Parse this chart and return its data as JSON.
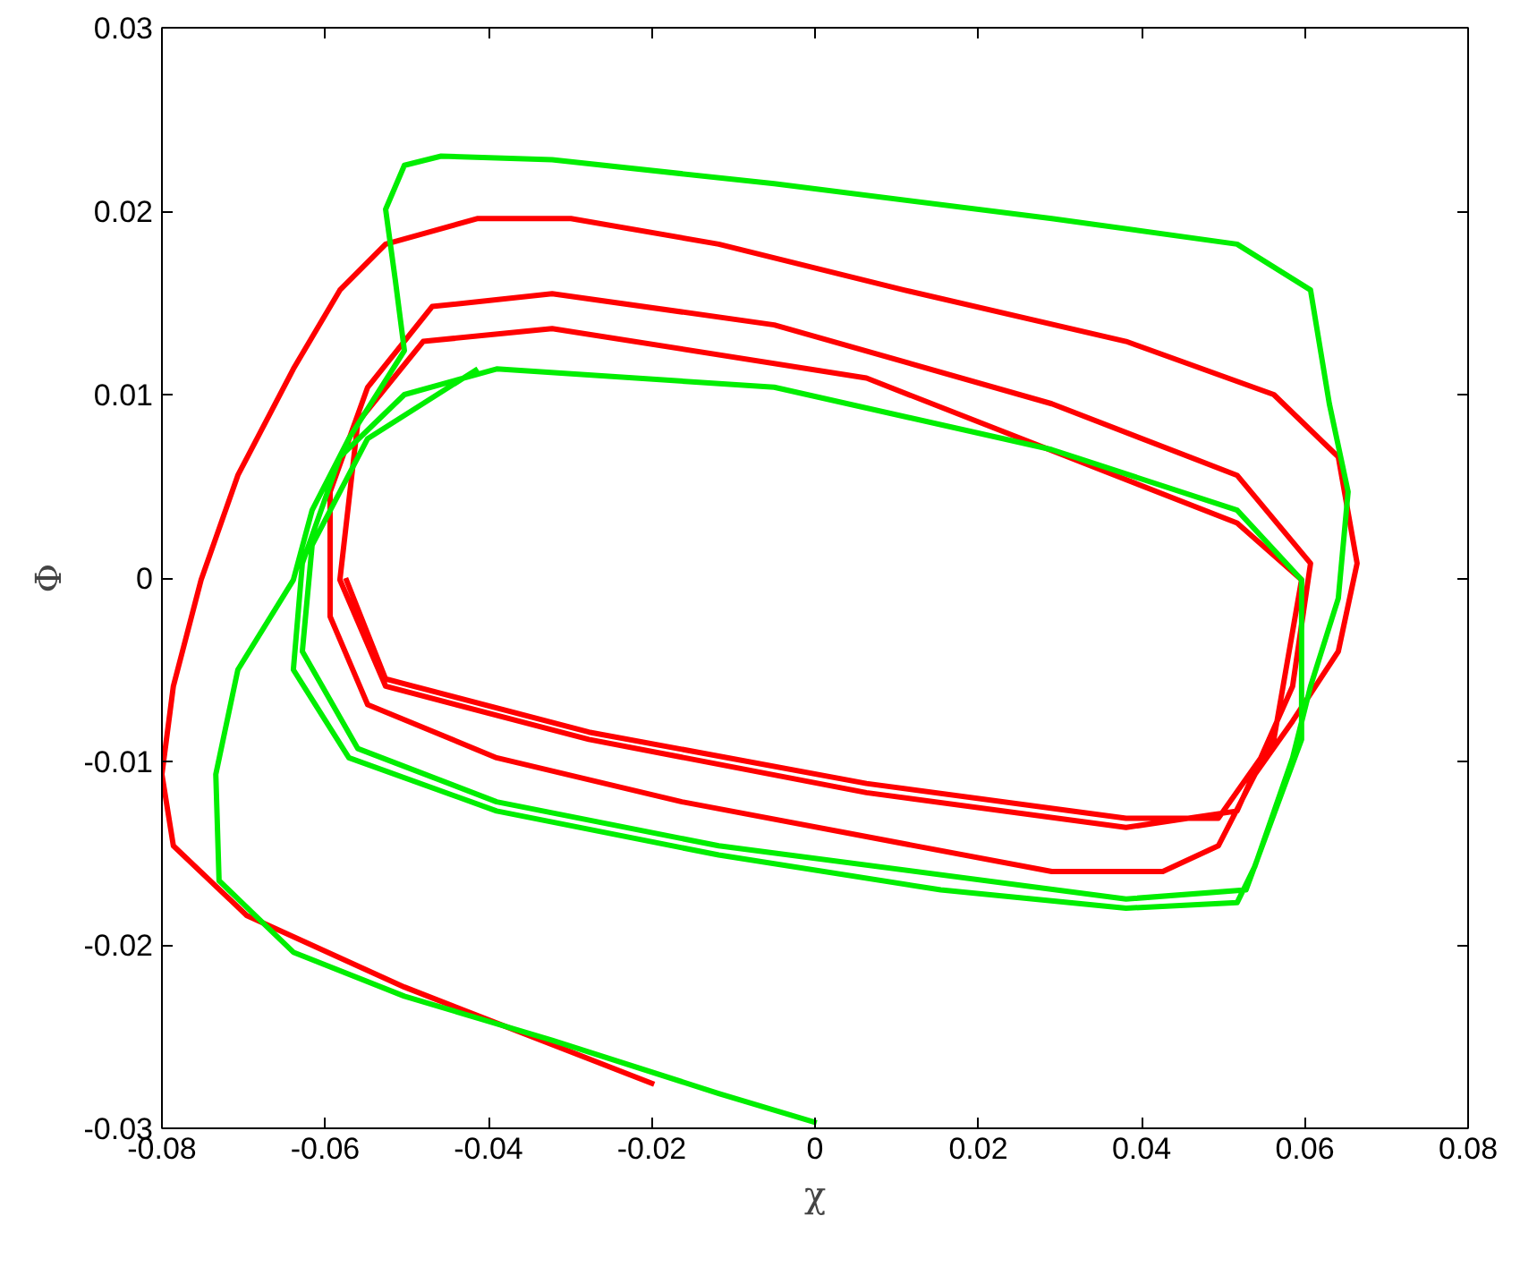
{
  "chart_data": {
    "type": "line",
    "xlabel": "χ",
    "ylabel": "Φ",
    "xlim": [
      -0.08,
      0.08
    ],
    "ylim": [
      -0.03,
      0.03
    ],
    "xticks": [
      -0.08,
      -0.06,
      -0.04,
      -0.02,
      0,
      0.02,
      0.04,
      0.06,
      0.08
    ],
    "yticks": [
      -0.03,
      -0.02,
      -0.01,
      0,
      0.01,
      0.02,
      0.03
    ],
    "grid": false,
    "marker": "none",
    "line_style": "solid",
    "series": [
      {
        "color": "#ff0000",
        "x": [
          -0.0197,
          -0.0503,
          -0.0696,
          -0.0786,
          -0.08,
          -0.0786,
          -0.0752,
          -0.0707,
          -0.0639,
          -0.0582,
          -0.0526,
          -0.0413,
          -0.0299,
          -0.0118,
          0.0109,
          0.0381,
          0.0562,
          0.0641,
          0.0664,
          0.0641,
          0.0585,
          0.0539,
          0.0494,
          0.0426,
          0.029,
          0.0063,
          -0.0163,
          -0.039,
          -0.0548,
          -0.0594,
          -0.0594,
          -0.0548,
          -0.0469,
          -0.0322,
          -0.005,
          0.029,
          0.0517,
          0.0607,
          0.0585,
          0.0517,
          0.0381,
          0.0063,
          -0.0277,
          -0.0526,
          -0.0582,
          -0.056,
          -0.048,
          -0.0322,
          0.0063,
          0.0517,
          0.0596,
          0.0562,
          0.0494,
          0.0381,
          0.0063,
          -0.0277,
          -0.0526,
          -0.0575
        ],
        "values": [
          -0.0276,
          -0.0223,
          -0.0184,
          -0.0146,
          -0.0107,
          -0.0059,
          -0.0001,
          0.0056,
          0.0114,
          0.0157,
          0.0182,
          0.0196,
          0.0196,
          0.0182,
          0.0157,
          0.0129,
          0.01,
          0.0066,
          0.0008,
          -0.004,
          -0.0078,
          -0.0107,
          -0.0146,
          -0.016,
          -0.016,
          -0.0141,
          -0.0122,
          -0.0098,
          -0.0069,
          -0.0021,
          0.0047,
          0.0104,
          0.0148,
          0.0155,
          0.0138,
          0.0095,
          0.0056,
          0.0008,
          -0.0059,
          -0.0127,
          -0.0136,
          -0.0117,
          -0.0088,
          -0.0059,
          -0.0001,
          0.0085,
          0.0129,
          0.0136,
          0.0109,
          0.003,
          -0.0001,
          -0.0088,
          -0.0131,
          -0.0131,
          -0.0112,
          -0.0084,
          -0.0055,
          0.0
        ]
      },
      {
        "color": "#00ee00",
        "x": [
          0.0002,
          -0.0118,
          -0.0322,
          -0.0503,
          -0.0639,
          -0.073,
          -0.0734,
          -0.0707,
          -0.0639,
          -0.0616,
          -0.0571,
          -0.0503,
          -0.0514,
          -0.0526,
          -0.0503,
          -0.0458,
          -0.0322,
          -0.005,
          0.029,
          0.0517,
          0.0607,
          0.063,
          0.0653,
          0.0641,
          0.0607,
          0.0585,
          0.0539,
          0.0517,
          0.0381,
          0.0154,
          -0.0118,
          -0.039,
          -0.0571,
          -0.0639,
          -0.0628,
          -0.0582,
          -0.0503,
          -0.039,
          -0.005,
          0.029,
          0.0517,
          0.0596,
          0.0596,
          0.0528,
          0.0381,
          -0.0118,
          -0.039,
          -0.056,
          -0.0628,
          -0.0616,
          -0.0548,
          -0.0413
        ],
        "values": [
          -0.0297,
          -0.0281,
          -0.0252,
          -0.0228,
          -0.0204,
          -0.0165,
          -0.0107,
          -0.005,
          -0.0001,
          0.0037,
          0.0076,
          0.0124,
          0.0162,
          0.0201,
          0.0225,
          0.023,
          0.0228,
          0.0215,
          0.0196,
          0.0182,
          0.0157,
          0.0095,
          0.0047,
          -0.0011,
          -0.0059,
          -0.0098,
          -0.0157,
          -0.0177,
          -0.018,
          -0.017,
          -0.0151,
          -0.0127,
          -0.0098,
          -0.005,
          0.0008,
          0.0066,
          0.01,
          0.0114,
          0.0104,
          0.007,
          0.0037,
          -0.0001,
          -0.0088,
          -0.017,
          -0.0175,
          -0.0146,
          -0.0122,
          -0.0093,
          -0.004,
          0.0018,
          0.0076,
          0.0114
        ]
      }
    ]
  }
}
